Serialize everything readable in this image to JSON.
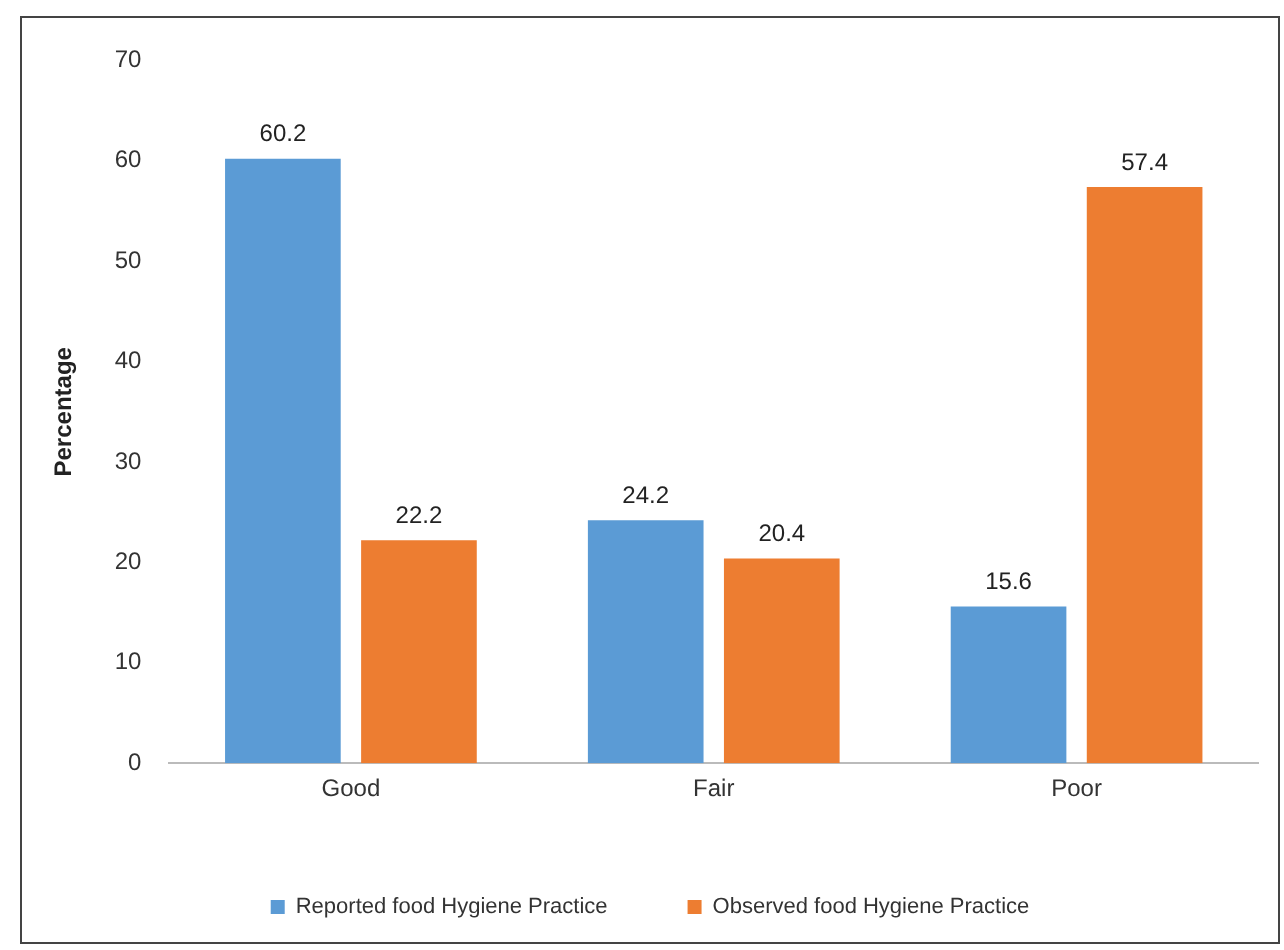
{
  "chart_data": {
    "type": "bar",
    "ylabel": "Percentage",
    "categories": [
      "Good",
      "Fair",
      "Poor"
    ],
    "series": [
      {
        "name": "Reported food Hygiene Practice",
        "color": "#5b9bd5",
        "values": [
          60.2,
          24.2,
          15.6
        ]
      },
      {
        "name": "Observed food Hygiene Practice",
        "color": "#ed7d31",
        "values": [
          22.2,
          20.4,
          57.4
        ]
      }
    ],
    "ylim": [
      0,
      70
    ],
    "yticks": [
      0,
      10,
      20,
      30,
      40,
      50,
      60,
      70
    ],
    "grid": false,
    "legend": "bottom",
    "data_labels": true
  }
}
